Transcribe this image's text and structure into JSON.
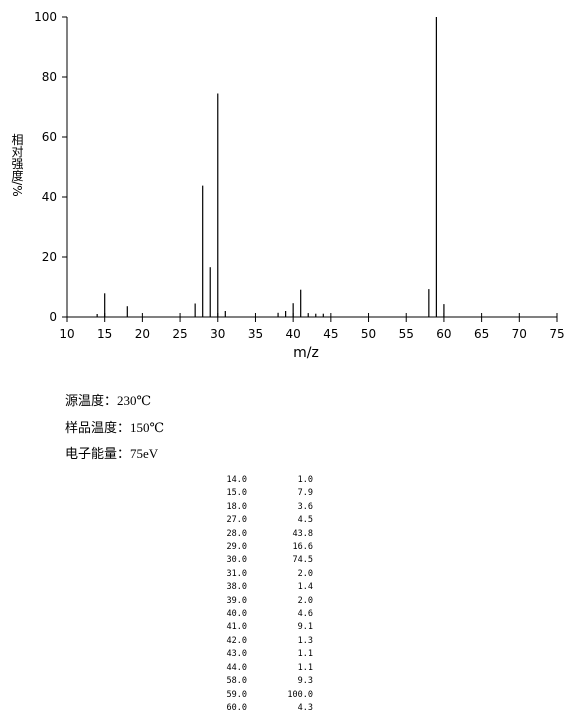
{
  "chart_data": {
    "type": "spectrum",
    "xlabel": "m/z",
    "ylabel": "相对强度/%",
    "x": [
      14,
      15,
      18,
      27,
      28,
      29,
      30,
      31,
      38,
      39,
      40,
      41,
      42,
      43,
      44,
      58,
      59,
      60
    ],
    "values": [
      1.0,
      7.9,
      3.6,
      4.5,
      43.8,
      16.6,
      74.5,
      2.0,
      1.4,
      2.0,
      4.6,
      9.1,
      1.3,
      1.1,
      1.1,
      9.3,
      100.0,
      4.3
    ],
    "color": "#000000",
    "xlim": [
      10,
      75
    ],
    "xticks": [
      10,
      15,
      20,
      25,
      30,
      35,
      40,
      45,
      50,
      55,
      60,
      65,
      70,
      75
    ],
    "ylim": [
      0,
      100
    ],
    "yticks": [
      0,
      20,
      40,
      60,
      80,
      100
    ]
  },
  "annotations": [
    "源温度：230℃",
    "样品温度：150℃",
    "电子能量：75eV"
  ],
  "table": {
    "rows": [
      [
        "14.0",
        "1.0"
      ],
      [
        "15.0",
        "7.9"
      ],
      [
        "18.0",
        "3.6"
      ],
      [
        "27.0",
        "4.5"
      ],
      [
        "28.0",
        "43.8"
      ],
      [
        "29.0",
        "16.6"
      ],
      [
        "30.0",
        "74.5"
      ],
      [
        "31.0",
        "2.0"
      ],
      [
        "38.0",
        "1.4"
      ],
      [
        "39.0",
        "2.0"
      ],
      [
        "40.0",
        "4.6"
      ],
      [
        "41.0",
        "9.1"
      ],
      [
        "42.0",
        "1.3"
      ],
      [
        "43.0",
        "1.1"
      ],
      [
        "44.0",
        "1.1"
      ],
      [
        "58.0",
        "9.3"
      ],
      [
        "59.0",
        "100.0"
      ],
      [
        "60.0",
        "4.3"
      ]
    ]
  }
}
